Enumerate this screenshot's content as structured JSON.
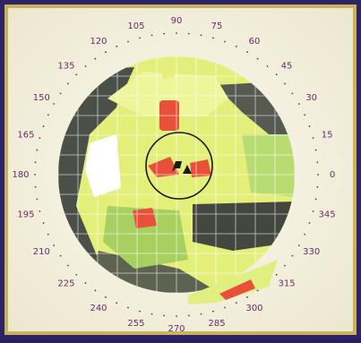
{
  "angle_labels": [
    "0",
    "15",
    "30",
    "45",
    "60",
    "75",
    "90",
    "105",
    "120",
    "135",
    "150",
    "165",
    "180",
    "195",
    "210",
    "225",
    "240",
    "255",
    "270",
    "285",
    "300",
    "315",
    "330",
    "345"
  ]
}
